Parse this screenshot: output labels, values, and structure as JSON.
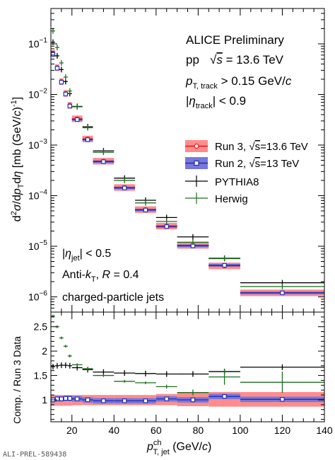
{
  "chart_data": [
    {
      "type": "scatter",
      "panel": "top",
      "y_scale": "log",
      "xlim": [
        10,
        140
      ],
      "ylim": [
        5e-07,
        0.5
      ],
      "y_ticks": [
        {
          "v": 0.1,
          "m": "10",
          "e": "−1"
        },
        {
          "v": 0.01,
          "m": "10",
          "e": "−2"
        },
        {
          "v": 0.001,
          "m": "10",
          "e": "−3"
        },
        {
          "v": 0.0001,
          "m": "10",
          "e": "−4"
        },
        {
          "v": 1e-05,
          "m": "10",
          "e": "−5"
        },
        {
          "v": 1e-06,
          "m": "10",
          "e": "−6"
        }
      ],
      "ylabel": "d²σ/dp_T dη [mb (GeV/c)⁻¹]",
      "annotations": {
        "experiment": "ALICE Preliminary",
        "system": "pp",
        "sqrt_s": "√s = 13.6 TeV",
        "track_pt": "p_T, track > 0.15 GeV/c",
        "track_eta": "|η_track| < 0.9",
        "jet_eta": "|η_jet| < 0.5",
        "algorithm": "Anti-k_T,   R = 0.4",
        "jet_type": "charged-particle jets"
      },
      "bins": [
        [
          10,
          12
        ],
        [
          12,
          14
        ],
        [
          14,
          16
        ],
        [
          16,
          18
        ],
        [
          18,
          20
        ],
        [
          20,
          25
        ],
        [
          25,
          30
        ],
        [
          30,
          40
        ],
        [
          40,
          50
        ],
        [
          50,
          60
        ],
        [
          60,
          70
        ],
        [
          70,
          85
        ],
        [
          85,
          100
        ],
        [
          100,
          140
        ]
      ],
      "series": [
        {
          "name": "Run 3, √s=13.6 TeV",
          "marker": "open-circle",
          "color": "#e8141a",
          "band_color": "#ff8c8c",
          "values": [
            0.065,
            0.034,
            0.018,
            0.0105,
            0.0061,
            0.0033,
            0.00132,
            0.00048,
            0.000145,
            5.3e-05,
            2.5e-05,
            1.04e-05,
            4.1e-06,
            1.2e-06
          ]
        },
        {
          "name": "Run 2, √s=13 TeV",
          "marker": "open-square",
          "color": "#1f2ab8",
          "band_color": "#7878d8",
          "values": [
            0.062,
            0.033,
            0.0175,
            0.0102,
            0.0059,
            0.0032,
            0.00128,
            0.00047,
            0.000142,
            5.2e-05,
            2.45e-05,
            1.02e-05,
            4.2e-06,
            1.2e-06
          ]
        },
        {
          "name": "PYTHIA8",
          "marker": "cross",
          "color": "#000000",
          "values": [
            0.108,
            0.058,
            0.031,
            0.018,
            0.0104,
            0.0058,
            0.0023,
            0.00077,
            0.000222,
            8.1e-05,
            3.7e-05,
            1.53e-05,
            5.8e-06,
            1.9e-06
          ]
        },
        {
          "name": "Herwig",
          "marker": "cross",
          "color": "#1e6e1e",
          "values": [
            0.18,
            0.085,
            0.042,
            0.022,
            0.0117,
            0.0057,
            0.0022,
            0.00072,
            0.0002,
            7.2e-05,
            3.1e-05,
            1.2e-05,
            5.7e-06,
            1.6e-06
          ]
        }
      ]
    },
    {
      "type": "scatter",
      "panel": "ratio",
      "xlim": [
        10,
        140
      ],
      "ylim": [
        0.55,
        2.8
      ],
      "x_ticks": [
        20,
        40,
        60,
        80,
        100,
        120,
        140
      ],
      "y_ticks": [
        1,
        1.5,
        2,
        2.5
      ],
      "ylabel": "Comp. / Run 3 Data",
      "xlabel": "p_T, jet^ch (GeV/c)",
      "bins": [
        [
          10,
          12
        ],
        [
          12,
          14
        ],
        [
          14,
          16
        ],
        [
          16,
          18
        ],
        [
          18,
          20
        ],
        [
          20,
          25
        ],
        [
          25,
          30
        ],
        [
          30,
          40
        ],
        [
          40,
          50
        ],
        [
          50,
          60
        ],
        [
          60,
          70
        ],
        [
          70,
          85
        ],
        [
          85,
          100
        ],
        [
          100,
          140
        ]
      ],
      "run3_band": {
        "lo": [
          0.88,
          0.88,
          0.88,
          0.88,
          0.88,
          0.89,
          0.89,
          0.89,
          0.89,
          0.89,
          0.89,
          0.87,
          0.86,
          0.86
        ],
        "hi": [
          1.1,
          1.1,
          1.1,
          1.1,
          1.1,
          1.1,
          1.1,
          1.1,
          1.1,
          1.1,
          1.12,
          1.16,
          1.16,
          1.16
        ]
      },
      "series": [
        {
          "name": "Run 2, √s=13 TeV",
          "color": "#1f2ab8",
          "band_color": "#7878d8",
          "values": [
            1.0,
            1.02,
            1.02,
            1.03,
            1.03,
            1.02,
            1.0,
            0.98,
            0.98,
            0.98,
            1.02,
            1.0,
            1.07,
            1.01
          ]
        },
        {
          "name": "PYTHIA8",
          "color": "#000000",
          "values": [
            1.68,
            1.7,
            1.71,
            1.71,
            1.7,
            1.66,
            1.62,
            1.57,
            1.55,
            1.54,
            1.53,
            1.53,
            1.58,
            1.67
          ]
        },
        {
          "name": "Herwig",
          "color": "#1e6e1e",
          "values": [
            2.72,
            2.5,
            2.27,
            2.1,
            1.9,
            1.72,
            1.64,
            1.5,
            1.38,
            1.35,
            1.27,
            1.15,
            1.47,
            1.36
          ],
          "errors": [
            0.02,
            0.02,
            0.02,
            0.02,
            0.02,
            0.02,
            0.02,
            0.02,
            0.02,
            0.02,
            0.04,
            0.06,
            0.16,
            0.22
          ]
        }
      ]
    }
  ],
  "footer_id": "ALI-PREL-589438"
}
